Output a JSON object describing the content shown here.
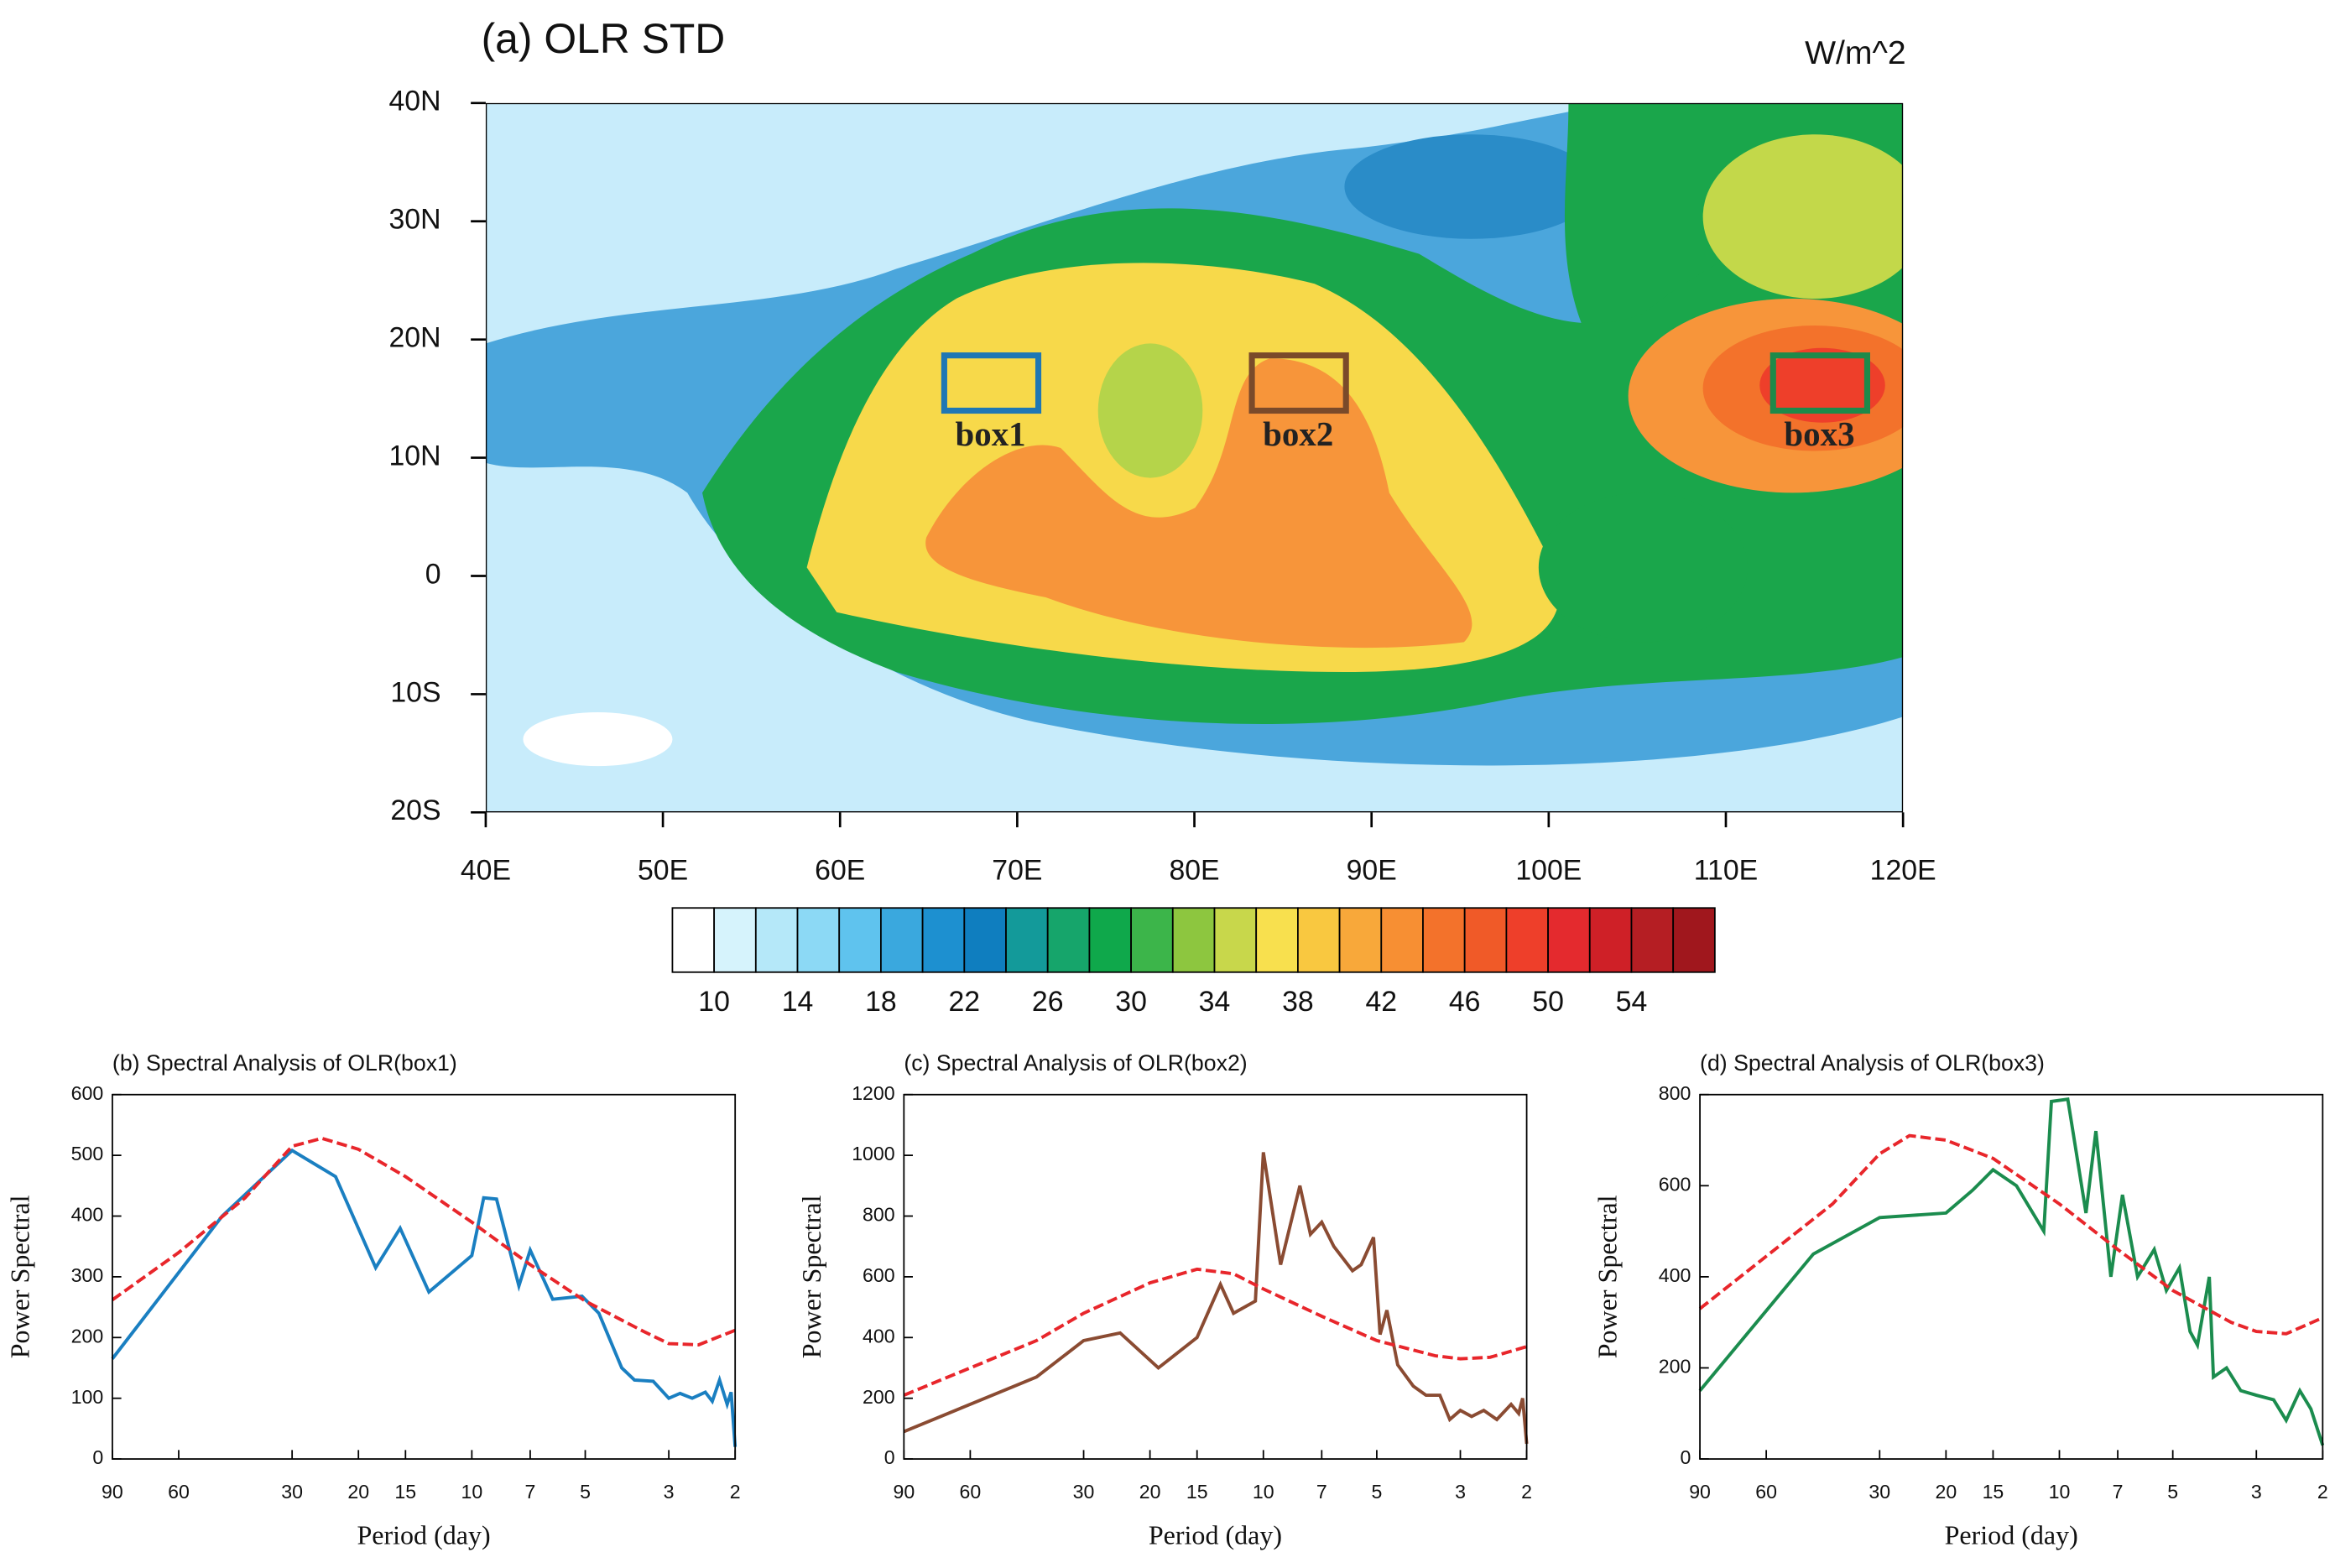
{
  "chart_data": [
    {
      "type": "contour",
      "title": "(a) OLR STD",
      "units": "W/m^2",
      "xlim": [
        40,
        120
      ],
      "ylim": [
        -20,
        40
      ],
      "xticks": [
        {
          "value": 40,
          "label": "40E"
        },
        {
          "value": 50,
          "label": "50E"
        },
        {
          "value": 60,
          "label": "60E"
        },
        {
          "value": 70,
          "label": "70E"
        },
        {
          "value": 80,
          "label": "80E"
        },
        {
          "value": 90,
          "label": "90E"
        },
        {
          "value": 100,
          "label": "100E"
        },
        {
          "value": 110,
          "label": "110E"
        },
        {
          "value": 120,
          "label": "120E"
        }
      ],
      "yticks": [
        {
          "value": -20,
          "label": "20S"
        },
        {
          "value": -10,
          "label": "10S"
        },
        0,
        {
          "value": 10,
          "label": "10N"
        },
        {
          "value": 20,
          "label": "20N"
        },
        {
          "value": 30,
          "label": "30N"
        },
        {
          "value": 40,
          "label": "40N"
        }
      ],
      "annotations": [
        "box1",
        "box2",
        "box3"
      ],
      "colorbar": {
        "clim": [
          8,
          58
        ],
        "ticks": [
          10,
          14,
          18,
          22,
          26,
          30,
          34,
          38,
          42,
          46,
          50,
          54
        ],
        "colors": [
          "#ffffff",
          "#d6f3fc",
          "#b5e8f9",
          "#8cd9f5",
          "#5fc3ee",
          "#3aa8de",
          "#1d90d0",
          "#0f7ebf",
          "#139a9a",
          "#16a56b",
          "#0fa84b",
          "#3cb54a",
          "#8dc63f",
          "#c8d74b",
          "#f8e04e",
          "#f9c840",
          "#f8a83a",
          "#f78f33",
          "#f3722b",
          "#f05a28",
          "#ee3f2a",
          "#e42a2e",
          "#cf2027",
          "#b51e23",
          "#a0171d"
        ]
      }
    },
    {
      "type": "line",
      "title": "(b) Spectral Analysis of OLR(box1)",
      "xlabel": "Period (day)",
      "ylabel": "Power Spectral",
      "xscale": "log",
      "xlim": [
        90,
        2
      ],
      "xticks": [
        90,
        60,
        30,
        20,
        15,
        10,
        7,
        5,
        3,
        2
      ],
      "ylim": [
        0,
        600
      ],
      "yticks": [
        0,
        100,
        200,
        300,
        400,
        500,
        600
      ],
      "series": [
        {
          "color": "#1a7fc1",
          "dash": false,
          "x": [
            90,
            46,
            30,
            23,
            18,
            15.5,
            13,
            10,
            9.3,
            8.6,
            7.5,
            7,
            6.1,
            5.1,
            4.6,
            4,
            3.7,
            3.3,
            3,
            2.8,
            2.6,
            2.4,
            2.3,
            2.2,
            2.1,
            2.05,
            2
          ],
          "values": [
            165,
            400,
            508,
            465,
            315,
            380,
            275,
            335,
            430,
            428,
            285,
            344,
            263,
            268,
            240,
            150,
            130,
            128,
            100,
            108,
            100,
            110,
            95,
            130,
            90,
            110,
            20
          ]
        },
        {
          "color": "#e8262b",
          "dash": true,
          "x": [
            90,
            60,
            40,
            30,
            25,
            20,
            15,
            10,
            7,
            5,
            3.5,
            3,
            2.5,
            2
          ],
          "values": [
            262,
            340,
            430,
            515,
            528,
            510,
            465,
            390,
            320,
            260,
            210,
            190,
            188,
            212
          ]
        }
      ]
    },
    {
      "type": "line",
      "title": "(c) Spectral Analysis of OLR(box2)",
      "xlabel": "Period (day)",
      "ylabel": "Power Spectral",
      "xscale": "log",
      "xlim": [
        90,
        2
      ],
      "xticks": [
        90,
        60,
        30,
        20,
        15,
        10,
        7,
        5,
        3,
        2
      ],
      "ylim": [
        0,
        1200
      ],
      "yticks": [
        0,
        200,
        400,
        600,
        800,
        1000,
        1200
      ],
      "series": [
        {
          "color": "#8a4b32",
          "dash": false,
          "x": [
            90,
            40,
            30,
            24,
            19,
            15,
            13,
            12,
            10.5,
            10,
            9,
            8,
            7.5,
            7,
            6.5,
            5.8,
            5.5,
            5.1,
            4.9,
            4.7,
            4.4,
            4,
            3.7,
            3.4,
            3.2,
            3,
            2.8,
            2.6,
            2.4,
            2.2,
            2.1,
            2.05,
            2
          ],
          "values": [
            90,
            270,
            390,
            415,
            300,
            400,
            575,
            480,
            520,
            1010,
            640,
            900,
            740,
            780,
            700,
            620,
            640,
            730,
            410,
            490,
            310,
            240,
            210,
            210,
            130,
            160,
            140,
            160,
            130,
            180,
            150,
            200,
            50
          ]
        },
        {
          "color": "#e8262b",
          "dash": true,
          "x": [
            90,
            40,
            30,
            20,
            15,
            12,
            10,
            7,
            5,
            3.5,
            3,
            2.5,
            2
          ],
          "values": [
            210,
            390,
            480,
            580,
            625,
            610,
            560,
            470,
            390,
            340,
            330,
            335,
            370
          ]
        }
      ]
    },
    {
      "type": "line",
      "title": "(d) Spectral Analysis of OLR(box3)",
      "xlabel": "Period (day)",
      "ylabel": "Power Spectral",
      "xscale": "log",
      "xlim": [
        90,
        2
      ],
      "xticks": [
        90,
        60,
        30,
        20,
        15,
        10,
        7,
        5,
        3,
        2
      ],
      "ylim": [
        0,
        800
      ],
      "yticks": [
        0,
        200,
        400,
        600,
        800
      ],
      "series": [
        {
          "color": "#1b8c4e",
          "dash": false,
          "x": [
            90,
            45,
            30,
            20,
            17,
            15,
            13,
            11,
            10.5,
            9.5,
            8.5,
            8,
            7.3,
            6.8,
            6.2,
            5.6,
            5.2,
            4.8,
            4.5,
            4.3,
            4,
            3.9,
            3.6,
            3.3,
            3,
            2.7,
            2.5,
            2.3,
            2.15,
            2
          ],
          "values": [
            150,
            450,
            530,
            540,
            590,
            635,
            600,
            500,
            785,
            790,
            540,
            720,
            400,
            580,
            400,
            460,
            370,
            420,
            280,
            250,
            400,
            180,
            200,
            150,
            140,
            130,
            85,
            150,
            110,
            30
          ]
        },
        {
          "color": "#e8262b",
          "dash": true,
          "x": [
            90,
            40,
            30,
            25,
            20,
            15,
            10,
            7,
            5,
            3.5,
            3,
            2.5,
            2
          ],
          "values": [
            330,
            560,
            670,
            710,
            700,
            660,
            560,
            460,
            370,
            300,
            280,
            275,
            310
          ]
        }
      ]
    }
  ]
}
